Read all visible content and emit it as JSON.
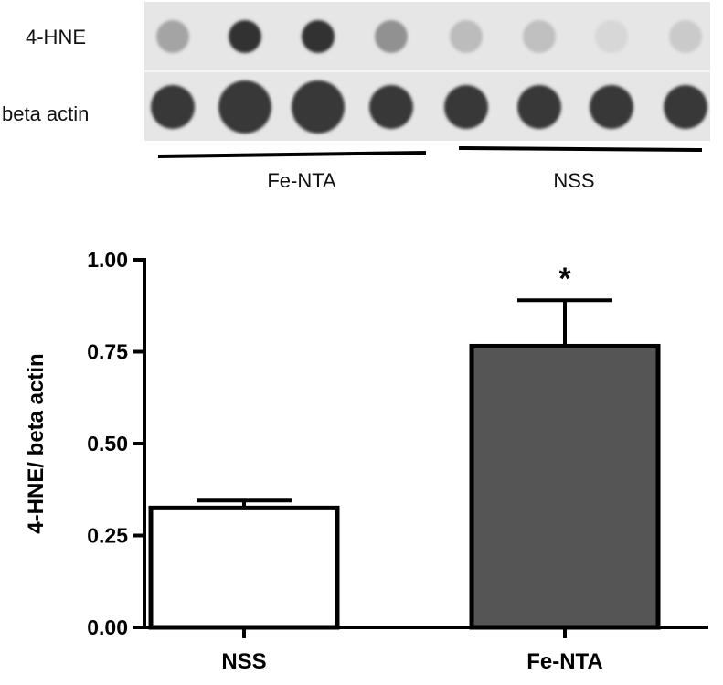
{
  "blot": {
    "rows": [
      {
        "label": "4-HNE",
        "spot_darkness": [
          0.35,
          0.95,
          0.95,
          0.45,
          0.22,
          0.2,
          0.08,
          0.15
        ]
      },
      {
        "label": "beta actin",
        "spot_darkness": [
          0.92,
          0.92,
          0.92,
          0.92,
          0.92,
          0.92,
          0.92,
          0.92
        ]
      }
    ],
    "groups": [
      {
        "label": "Fe-NTA",
        "lanes": [
          1,
          4
        ]
      },
      {
        "label": "NSS",
        "lanes": [
          5,
          8
        ]
      }
    ]
  },
  "chart_data": {
    "type": "bar",
    "categories": [
      "NSS",
      "Fe-NTA"
    ],
    "values": [
      0.325,
      0.765
    ],
    "error_upper": [
      0.02,
      0.125
    ],
    "bar_colors": [
      "#ffffff",
      "#555555"
    ],
    "significance": [
      "",
      "*"
    ],
    "ylabel": "4-HNE/ beta actin",
    "xlabel": "",
    "ylim": [
      0,
      1.0
    ],
    "yticks": [
      "0.00",
      "0.25",
      "0.50",
      "0.75",
      "1.00"
    ],
    "grid": false
  }
}
